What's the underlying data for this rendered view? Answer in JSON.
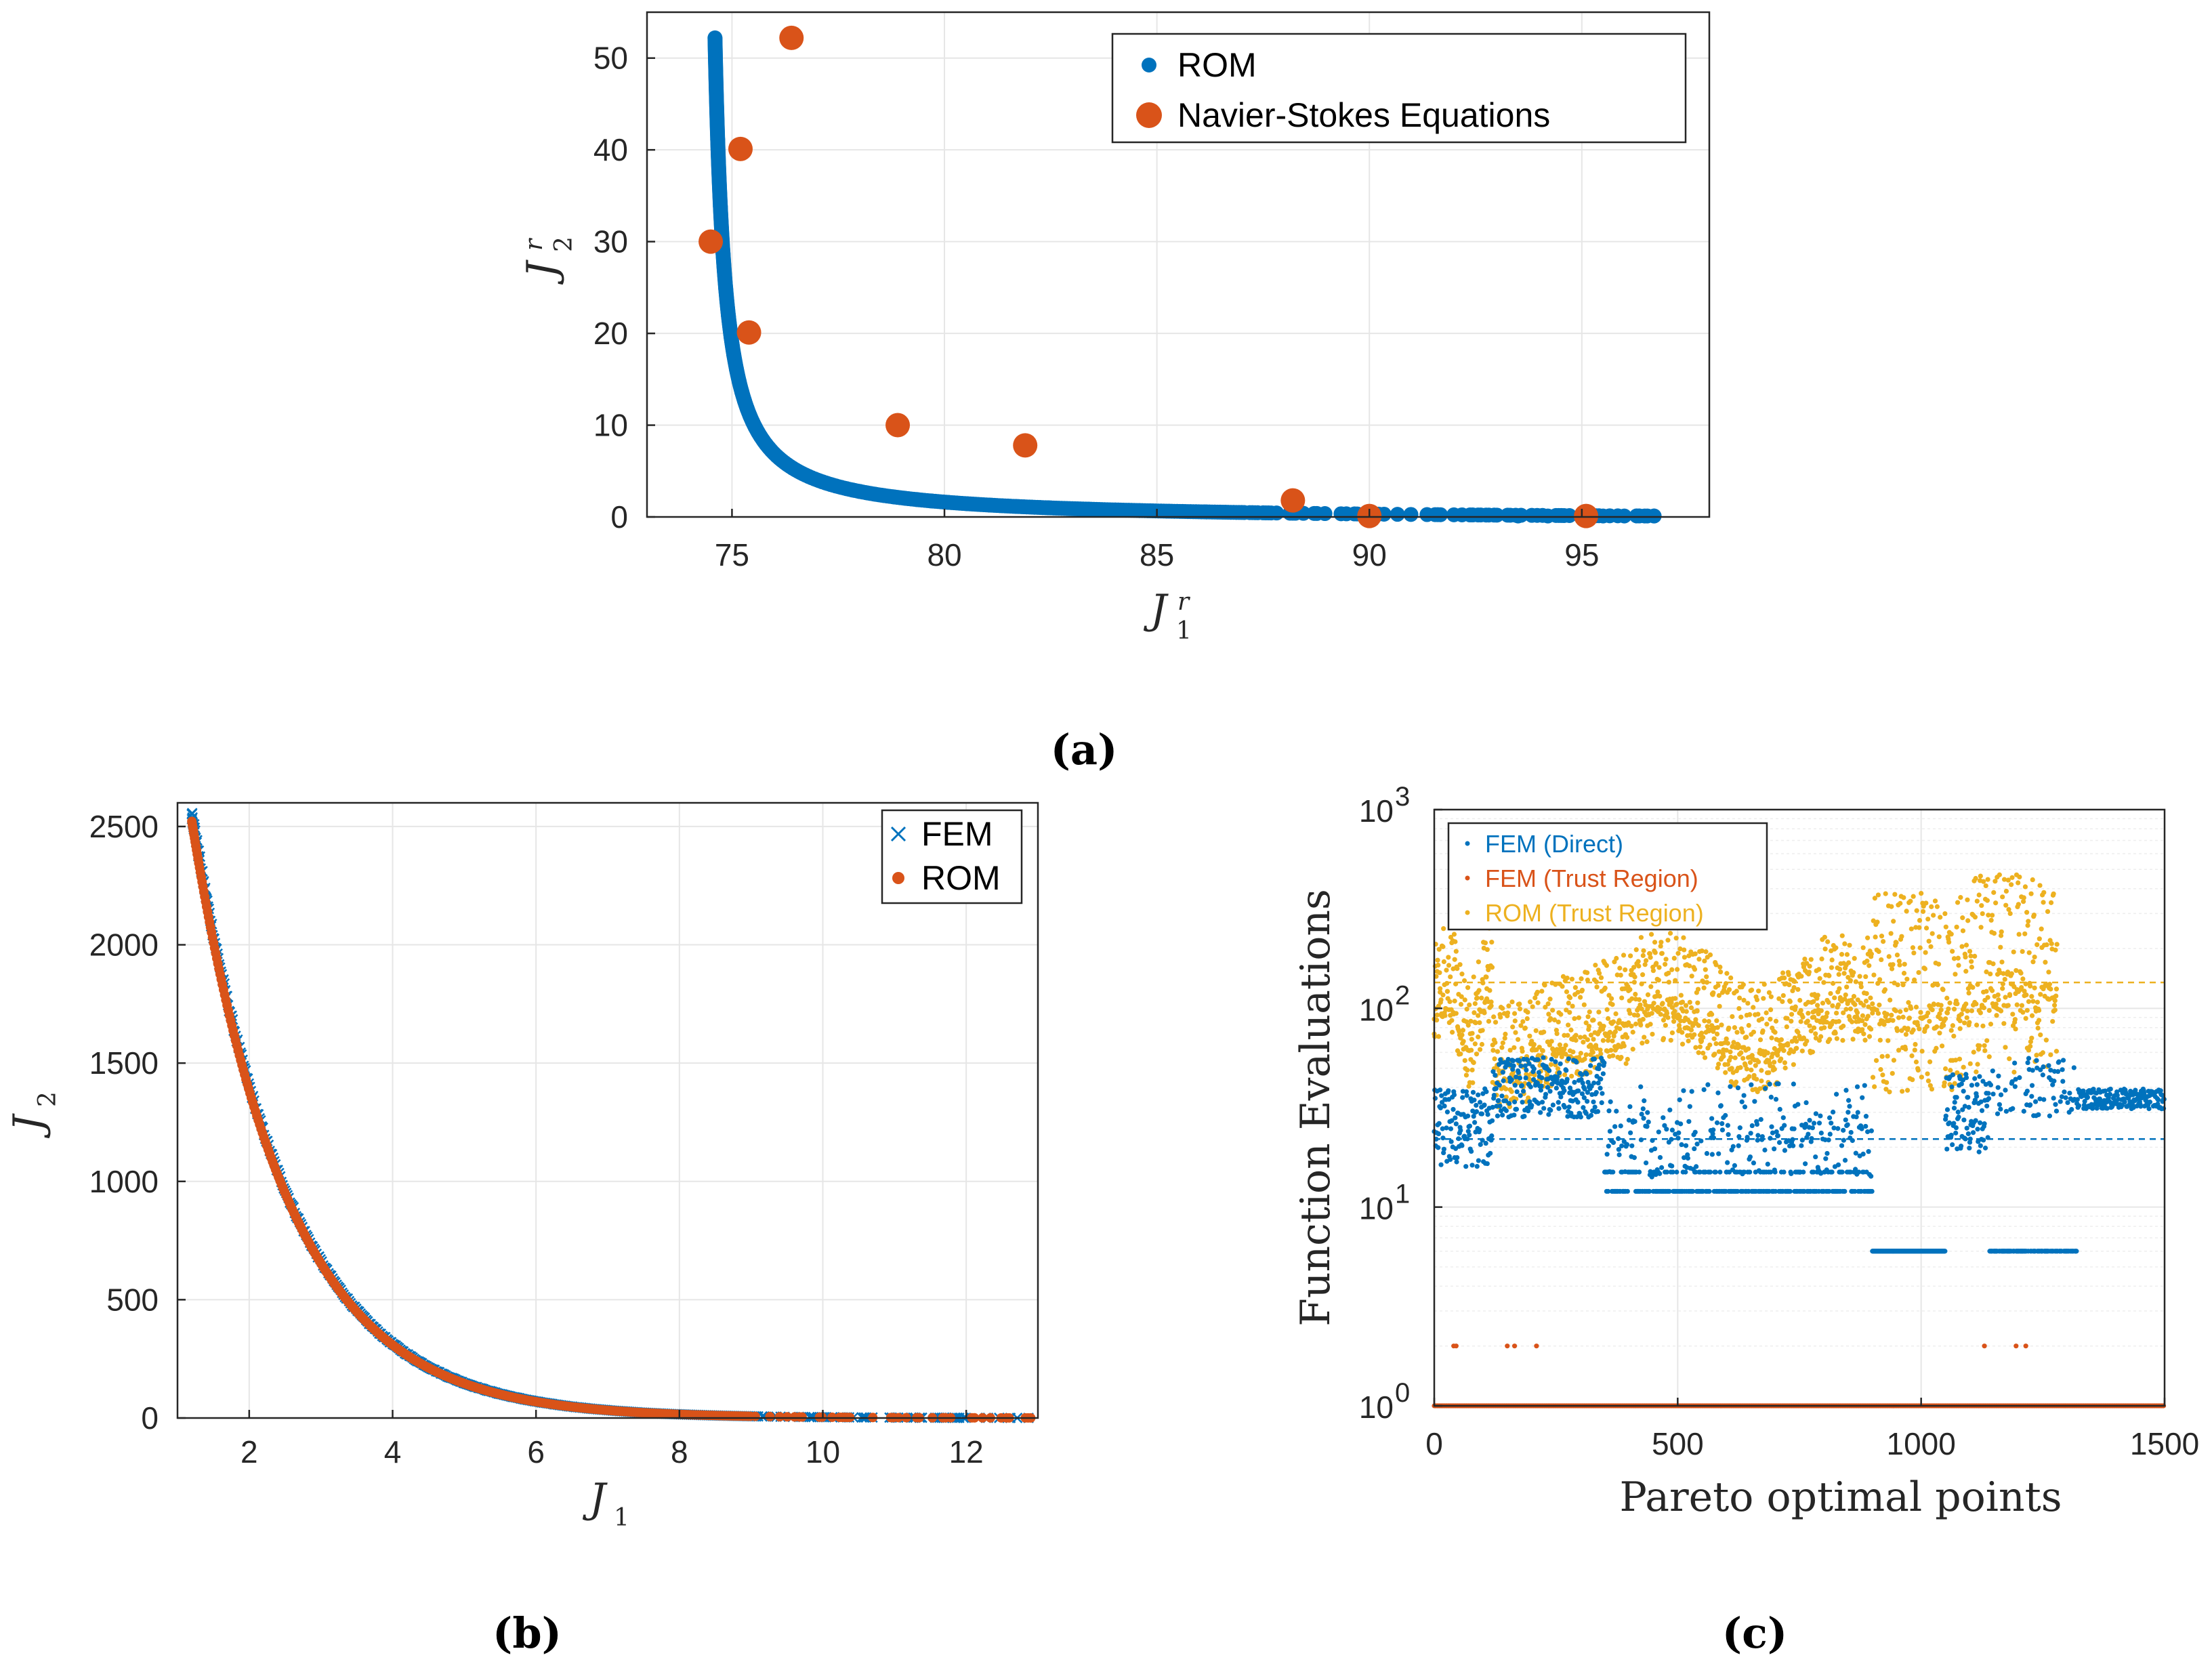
{
  "panel_labels": [
    "(a)",
    "(b)",
    "(c)"
  ],
  "chart_data": [
    {
      "id": "a",
      "type": "scatter",
      "xlabel": "J",
      "xlabel_sub": "1",
      "xlabel_sup": "r",
      "ylabel": "J",
      "ylabel_sub": "2",
      "ylabel_sup": "r",
      "xlim": [
        73,
        98
      ],
      "ylim": [
        0,
        55
      ],
      "xticks": [
        75,
        80,
        85,
        90,
        95
      ],
      "yticks": [
        0,
        10,
        20,
        30,
        40,
        50
      ],
      "grid": true,
      "legend": "top-right",
      "colors": {
        "ROM": "#0072BD",
        "Navier-Stokes Equations": "#D95319"
      },
      "series": [
        {
          "name": "ROM",
          "curve": "pareto",
          "x_range": [
            74.6,
            96.7
          ],
          "y_range": [
            0.1,
            52.2
          ]
        },
        {
          "name": "Navier-Stokes Equations",
          "x": [
            74.5,
            75.2,
            75.4,
            76.4,
            78.9,
            81.9,
            88.2,
            90.0,
            95.1
          ],
          "y": [
            30.0,
            40.1,
            20.1,
            52.2,
            10.0,
            7.8,
            1.8,
            0.1,
            0.1
          ]
        }
      ]
    },
    {
      "id": "b",
      "type": "scatter",
      "xlabel": "J",
      "xlabel_sub": "1",
      "ylabel": "J",
      "ylabel_sub": "2",
      "xlim": [
        1,
        13
      ],
      "ylim": [
        0,
        2600
      ],
      "xticks": [
        2,
        4,
        6,
        8,
        10,
        12
      ],
      "yticks": [
        0,
        500,
        1000,
        1500,
        2000,
        2500
      ],
      "grid": true,
      "legend": "top-right",
      "colors": {
        "FEM": "#0072BD",
        "ROM": "#D95319"
      },
      "series": [
        {
          "name": "FEM",
          "marker": "x",
          "curve": "pareto",
          "x_range": [
            1.2,
            12.9
          ],
          "y_range": [
            0,
            2560
          ]
        },
        {
          "name": "ROM",
          "marker": "dot",
          "curve": "pareto",
          "x_range": [
            1.2,
            12.9
          ],
          "y_range": [
            0,
            2530
          ]
        }
      ]
    },
    {
      "id": "c",
      "type": "scatter",
      "xlabel": "Pareto optimal points",
      "ylabel": "Function Evaluations",
      "xlim": [
        0,
        1500
      ],
      "ylim": [
        1,
        1000
      ],
      "yscale": "log",
      "xticks": [
        0,
        500,
        1000,
        1500
      ],
      "yticks": [
        1,
        10,
        100,
        1000
      ],
      "ytick_labels": [
        {
          "base": "10",
          "exp": "0"
        },
        {
          "base": "10",
          "exp": "1"
        },
        {
          "base": "10",
          "exp": "2"
        },
        {
          "base": "10",
          "exp": "3"
        }
      ],
      "grid": true,
      "legend": "top-left",
      "colors": {
        "FEM (Direct)": "#0072BD",
        "FEM (Trust Region)": "#D95319",
        "ROM (Trust Region)": "#EDB120"
      },
      "series": [
        {
          "name": "FEM (Direct)",
          "n_points": 1500,
          "mean": 22
        },
        {
          "name": "FEM (Trust Region)",
          "n_points": 1280,
          "mean": 1
        },
        {
          "name": "ROM (Trust Region)",
          "n_points": 1280,
          "mean": 135
        }
      ]
    }
  ]
}
